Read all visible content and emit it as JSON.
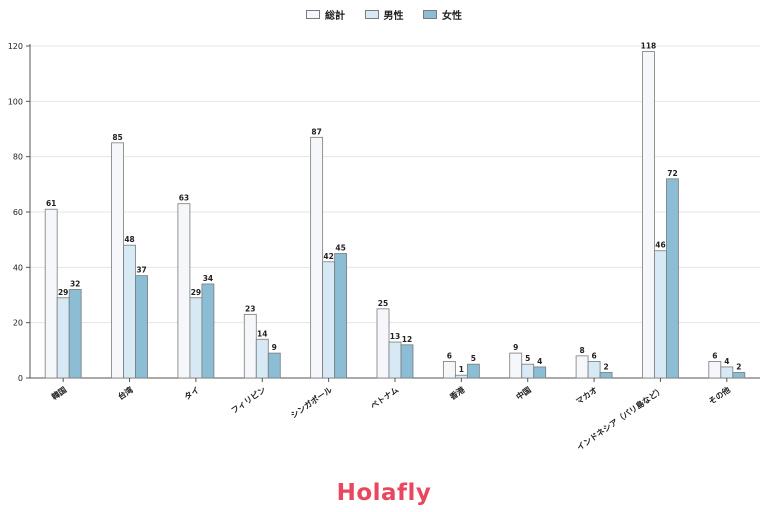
{
  "colors": {
    "total": "#f6f7fb",
    "male": "#d6e9f4",
    "female": "#8bbdd4",
    "edge": "#7b7b7b",
    "grid": "#e4e4e4",
    "axis": "#555555",
    "brand": "#e8475f"
  },
  "brand": {
    "logo_text": "Holafly"
  },
  "chart_data": {
    "type": "bar",
    "title": "",
    "xlabel": "",
    "ylabel": "",
    "ylim": [
      0,
      120
    ],
    "yticks": [
      0,
      20,
      40,
      60,
      80,
      100,
      120
    ],
    "grid": true,
    "legend_position": "top-center",
    "categories": [
      "韓国",
      "台湾",
      "タイ",
      "フィリピン",
      "シンガポール",
      "ベトナム",
      "香港",
      "中国",
      "マカオ",
      "インドネシア（バリ島など）",
      "その他"
    ],
    "series": [
      {
        "name": "総計",
        "color": "#f6f7fb",
        "values": [
          61,
          85,
          63,
          23,
          87,
          25,
          6,
          9,
          8,
          118,
          6
        ]
      },
      {
        "name": "男性",
        "color": "#d6e9f4",
        "values": [
          29,
          48,
          29,
          14,
          42,
          13,
          1,
          5,
          6,
          46,
          4
        ]
      },
      {
        "name": "女性",
        "color": "#8bbdd4",
        "values": [
          32,
          37,
          34,
          9,
          45,
          12,
          5,
          4,
          2,
          72,
          2
        ]
      }
    ]
  }
}
